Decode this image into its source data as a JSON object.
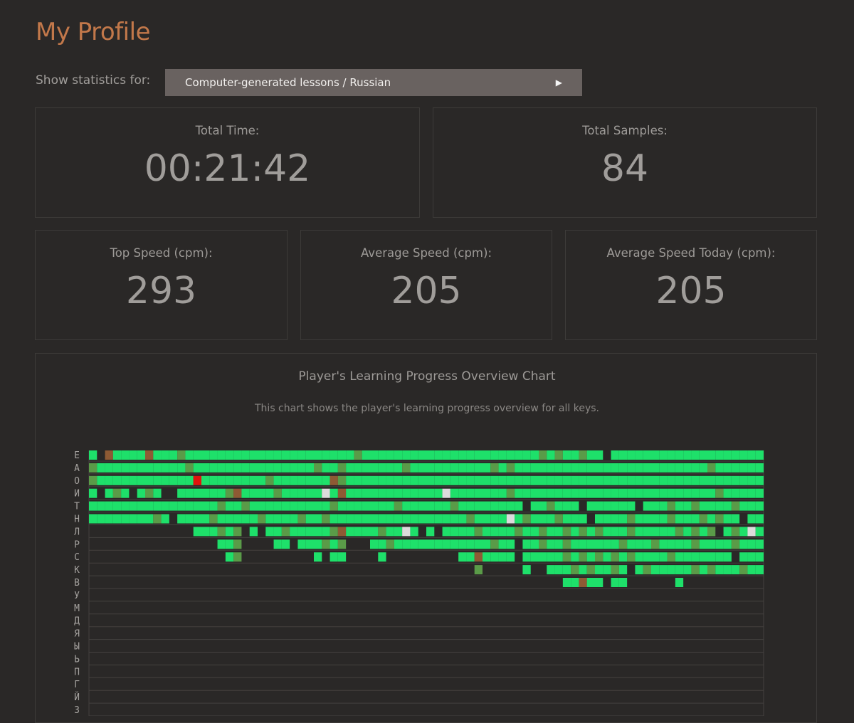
{
  "page": {
    "title": "My Profile"
  },
  "filter": {
    "label": "Show statistics for:",
    "selected": "Computer-generated lessons / Russian",
    "arrow_icon": "play-triangle-icon"
  },
  "stats": {
    "total_time": {
      "label": "Total Time:",
      "value": "00:21:42"
    },
    "total_samples": {
      "label": "Total Samples:",
      "value": "84"
    },
    "top_speed": {
      "label": "Top Speed (cpm):",
      "value": "293"
    },
    "avg_speed": {
      "label": "Average Speed (cpm):",
      "value": "205"
    },
    "avg_speed_today": {
      "label": "Average Speed Today (cpm):",
      "value": "205"
    }
  },
  "chart": {
    "title": "Player's Learning Progress Overview Chart",
    "subtitle": "This chart shows the player's learning progress overview for all keys."
  },
  "chart_data": {
    "type": "heatmap",
    "title": "Player's Learning Progress Overview Chart",
    "subtitle": "This chart shows the player's learning progress overview for all keys.",
    "rows": [
      "Е",
      "А",
      "О",
      "И",
      "Т",
      "Н",
      "Л",
      "Р",
      "С",
      "К",
      "В",
      "У",
      "М",
      "Д",
      "Я",
      "Ы",
      "Ь",
      "П",
      "Г",
      "Й",
      "З"
    ],
    "columns": 84,
    "colors": {
      "good": "#1ee06a",
      "medium": "#5a9b48",
      "weak": "#8e5a34",
      "error": "#e0140c",
      "new": "#dcdcdc",
      "background": "#2a2827",
      "grid": "#44413f"
    },
    "cells": {
      "Е": [
        [
          0,
          0,
          "g"
        ],
        [
          2,
          2,
          "w"
        ],
        [
          3,
          6,
          "g"
        ],
        [
          7,
          7,
          "w"
        ],
        [
          8,
          10,
          "g"
        ],
        [
          11,
          11,
          "m"
        ],
        [
          12,
          32,
          "g"
        ],
        [
          33,
          33,
          "m"
        ],
        [
          34,
          55,
          "g"
        ],
        [
          56,
          56,
          "m"
        ],
        [
          57,
          57,
          "g"
        ],
        [
          58,
          58,
          "m"
        ],
        [
          59,
          60,
          "g"
        ],
        [
          61,
          61,
          "m"
        ],
        [
          62,
          63,
          "g"
        ],
        [
          65,
          83,
          "g"
        ]
      ],
      "А": [
        [
          0,
          0,
          "m"
        ],
        [
          1,
          11,
          "g"
        ],
        [
          12,
          12,
          "m"
        ],
        [
          13,
          27,
          "g"
        ],
        [
          28,
          28,
          "m"
        ],
        [
          29,
          30,
          "g"
        ],
        [
          31,
          31,
          "m"
        ],
        [
          32,
          38,
          "g"
        ],
        [
          39,
          39,
          "m"
        ],
        [
          40,
          49,
          "g"
        ],
        [
          50,
          50,
          "m"
        ],
        [
          51,
          51,
          "g"
        ],
        [
          52,
          52,
          "m"
        ],
        [
          53,
          76,
          "g"
        ],
        [
          77,
          77,
          "m"
        ],
        [
          78,
          83,
          "g"
        ]
      ],
      "О": [
        [
          0,
          0,
          "m"
        ],
        [
          1,
          12,
          "g"
        ],
        [
          13,
          13,
          "e"
        ],
        [
          14,
          21,
          "g"
        ],
        [
          22,
          22,
          "m"
        ],
        [
          23,
          29,
          "g"
        ],
        [
          30,
          30,
          "w"
        ],
        [
          31,
          31,
          "m"
        ],
        [
          32,
          83,
          "g"
        ]
      ],
      "И": [
        [
          0,
          0,
          "g"
        ],
        [
          2,
          2,
          "g"
        ],
        [
          3,
          3,
          "m"
        ],
        [
          4,
          4,
          "g"
        ],
        [
          6,
          6,
          "g"
        ],
        [
          7,
          7,
          "m"
        ],
        [
          8,
          8,
          "g"
        ],
        [
          11,
          16,
          "g"
        ],
        [
          17,
          17,
          "m"
        ],
        [
          18,
          18,
          "w"
        ],
        [
          19,
          22,
          "g"
        ],
        [
          23,
          23,
          "m"
        ],
        [
          24,
          28,
          "g"
        ],
        [
          29,
          29,
          "n"
        ],
        [
          30,
          30,
          "g"
        ],
        [
          31,
          31,
          "w"
        ],
        [
          32,
          43,
          "g"
        ],
        [
          44,
          44,
          "n"
        ],
        [
          45,
          51,
          "g"
        ],
        [
          52,
          52,
          "m"
        ],
        [
          53,
          77,
          "g"
        ],
        [
          78,
          78,
          "m"
        ],
        [
          79,
          83,
          "g"
        ]
      ],
      "Т": [
        [
          0,
          15,
          "g"
        ],
        [
          16,
          16,
          "m"
        ],
        [
          17,
          18,
          "g"
        ],
        [
          19,
          19,
          "m"
        ],
        [
          20,
          29,
          "g"
        ],
        [
          30,
          30,
          "m"
        ],
        [
          31,
          37,
          "g"
        ],
        [
          38,
          38,
          "m"
        ],
        [
          39,
          44,
          "g"
        ],
        [
          45,
          45,
          "m"
        ],
        [
          46,
          53,
          "g"
        ],
        [
          55,
          56,
          "g"
        ],
        [
          57,
          57,
          "m"
        ],
        [
          58,
          60,
          "g"
        ],
        [
          62,
          67,
          "g"
        ],
        [
          69,
          71,
          "g"
        ],
        [
          72,
          72,
          "m"
        ],
        [
          73,
          74,
          "g"
        ],
        [
          75,
          75,
          "m"
        ],
        [
          76,
          79,
          "g"
        ],
        [
          80,
          80,
          "m"
        ],
        [
          81,
          83,
          "g"
        ]
      ],
      "Н": [
        [
          0,
          7,
          "g"
        ],
        [
          8,
          8,
          "m"
        ],
        [
          9,
          9,
          "g"
        ],
        [
          11,
          14,
          "g"
        ],
        [
          15,
          15,
          "m"
        ],
        [
          16,
          20,
          "g"
        ],
        [
          21,
          21,
          "m"
        ],
        [
          22,
          25,
          "g"
        ],
        [
          26,
          26,
          "m"
        ],
        [
          27,
          28,
          "g"
        ],
        [
          29,
          29,
          "m"
        ],
        [
          30,
          46,
          "g"
        ],
        [
          47,
          47,
          "m"
        ],
        [
          48,
          51,
          "g"
        ],
        [
          52,
          52,
          "n"
        ],
        [
          53,
          53,
          "g"
        ],
        [
          54,
          54,
          "m"
        ],
        [
          55,
          57,
          "g"
        ],
        [
          58,
          58,
          "m"
        ],
        [
          59,
          61,
          "g"
        ],
        [
          63,
          66,
          "g"
        ],
        [
          67,
          67,
          "m"
        ],
        [
          68,
          71,
          "g"
        ],
        [
          72,
          72,
          "m"
        ],
        [
          73,
          75,
          "g"
        ],
        [
          76,
          76,
          "m"
        ],
        [
          77,
          77,
          "g"
        ],
        [
          78,
          78,
          "m"
        ],
        [
          79,
          80,
          "g"
        ],
        [
          82,
          83,
          "g"
        ]
      ],
      "Л": [
        [
          13,
          15,
          "g"
        ],
        [
          16,
          16,
          "m"
        ],
        [
          17,
          17,
          "g"
        ],
        [
          18,
          18,
          "m"
        ],
        [
          20,
          20,
          "g"
        ],
        [
          22,
          23,
          "g"
        ],
        [
          24,
          24,
          "m"
        ],
        [
          25,
          29,
          "g"
        ],
        [
          30,
          30,
          "m"
        ],
        [
          31,
          31,
          "w"
        ],
        [
          32,
          35,
          "g"
        ],
        [
          36,
          36,
          "m"
        ],
        [
          37,
          38,
          "g"
        ],
        [
          39,
          39,
          "n"
        ],
        [
          40,
          40,
          "g"
        ],
        [
          42,
          42,
          "g"
        ],
        [
          44,
          47,
          "g"
        ],
        [
          48,
          48,
          "m"
        ],
        [
          49,
          52,
          "g"
        ],
        [
          53,
          53,
          "m"
        ],
        [
          54,
          55,
          "g"
        ],
        [
          56,
          56,
          "m"
        ],
        [
          57,
          58,
          "g"
        ],
        [
          59,
          59,
          "m"
        ],
        [
          60,
          60,
          "g"
        ],
        [
          61,
          61,
          "m"
        ],
        [
          62,
          62,
          "g"
        ],
        [
          63,
          63,
          "m"
        ],
        [
          64,
          66,
          "g"
        ],
        [
          67,
          67,
          "m"
        ],
        [
          68,
          72,
          "g"
        ],
        [
          73,
          73,
          "m"
        ],
        [
          74,
          74,
          "g"
        ],
        [
          75,
          75,
          "m"
        ],
        [
          76,
          76,
          "g"
        ],
        [
          77,
          77,
          "m"
        ],
        [
          79,
          79,
          "g"
        ],
        [
          80,
          80,
          "m"
        ],
        [
          81,
          81,
          "g"
        ],
        [
          82,
          82,
          "n"
        ],
        [
          83,
          83,
          "g"
        ]
      ],
      "Р": [
        [
          16,
          17,
          "g"
        ],
        [
          18,
          18,
          "m"
        ],
        [
          23,
          24,
          "g"
        ],
        [
          26,
          28,
          "g"
        ],
        [
          29,
          29,
          "m"
        ],
        [
          30,
          30,
          "g"
        ],
        [
          31,
          31,
          "m"
        ],
        [
          35,
          36,
          "g"
        ],
        [
          37,
          37,
          "m"
        ],
        [
          38,
          49,
          "g"
        ],
        [
          50,
          50,
          "m"
        ],
        [
          51,
          52,
          "g"
        ],
        [
          54,
          55,
          "g"
        ],
        [
          56,
          56,
          "m"
        ],
        [
          57,
          58,
          "g"
        ],
        [
          59,
          59,
          "m"
        ],
        [
          60,
          65,
          "g"
        ],
        [
          66,
          66,
          "m"
        ],
        [
          67,
          69,
          "g"
        ],
        [
          70,
          70,
          "m"
        ],
        [
          71,
          74,
          "g"
        ],
        [
          75,
          75,
          "m"
        ],
        [
          76,
          79,
          "g"
        ],
        [
          80,
          80,
          "m"
        ],
        [
          81,
          83,
          "g"
        ]
      ],
      "С": [
        [
          17,
          17,
          "g"
        ],
        [
          18,
          18,
          "m"
        ],
        [
          28,
          28,
          "g"
        ],
        [
          30,
          31,
          "g"
        ],
        [
          36,
          36,
          "g"
        ],
        [
          46,
          47,
          "g"
        ],
        [
          48,
          48,
          "w"
        ],
        [
          49,
          52,
          "g"
        ],
        [
          54,
          58,
          "g"
        ],
        [
          59,
          59,
          "m"
        ],
        [
          60,
          60,
          "g"
        ],
        [
          61,
          61,
          "m"
        ],
        [
          62,
          62,
          "g"
        ],
        [
          63,
          63,
          "m"
        ],
        [
          64,
          64,
          "g"
        ],
        [
          65,
          65,
          "m"
        ],
        [
          66,
          66,
          "g"
        ],
        [
          67,
          67,
          "m"
        ],
        [
          68,
          71,
          "g"
        ],
        [
          72,
          72,
          "m"
        ],
        [
          73,
          79,
          "g"
        ],
        [
          81,
          83,
          "g"
        ]
      ],
      "К": [
        [
          48,
          48,
          "m"
        ],
        [
          54,
          54,
          "g"
        ],
        [
          57,
          59,
          "g"
        ],
        [
          60,
          60,
          "m"
        ],
        [
          61,
          61,
          "g"
        ],
        [
          62,
          62,
          "m"
        ],
        [
          63,
          64,
          "g"
        ],
        [
          65,
          65,
          "m"
        ],
        [
          66,
          66,
          "g"
        ],
        [
          68,
          68,
          "g"
        ],
        [
          69,
          69,
          "m"
        ],
        [
          70,
          74,
          "g"
        ],
        [
          75,
          75,
          "m"
        ],
        [
          76,
          76,
          "g"
        ],
        [
          77,
          77,
          "m"
        ],
        [
          78,
          80,
          "g"
        ],
        [
          81,
          81,
          "m"
        ],
        [
          82,
          83,
          "g"
        ]
      ],
      "В": [
        [
          59,
          60,
          "g"
        ],
        [
          61,
          61,
          "w"
        ],
        [
          62,
          63,
          "g"
        ],
        [
          65,
          66,
          "g"
        ],
        [
          73,
          73,
          "g"
        ]
      ],
      "У": [],
      "М": [],
      "Д": [],
      "Я": [],
      "Ы": [],
      "Ь": [],
      "П": [],
      "Г": [],
      "Й": [],
      "З": []
    }
  }
}
